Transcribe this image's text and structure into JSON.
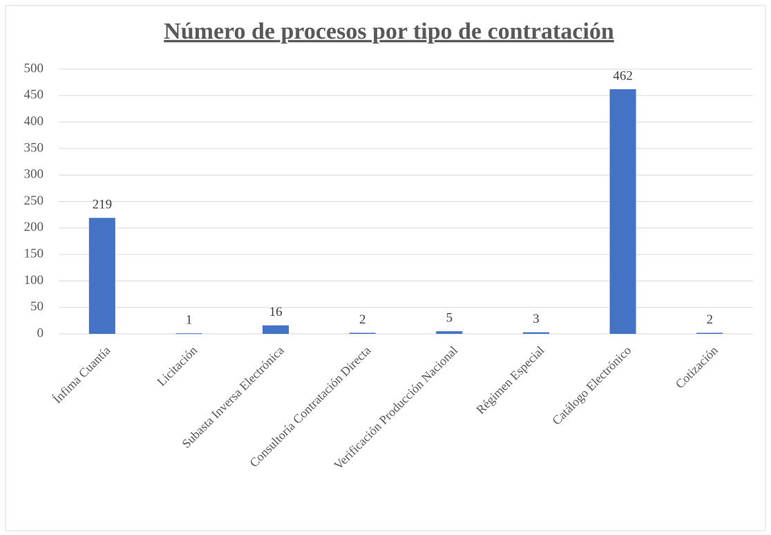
{
  "chart_data": {
    "type": "bar",
    "title": "Número de procesos por tipo de contratación",
    "categories": [
      "Ínfima Cuantía",
      "Licitación",
      "Subasta Inversa Electrónica",
      "Consultoría Contratación Directa",
      "Verificación Producción Nacional",
      "Régimen Especial",
      "Catálogo Electrónico",
      "Cotización"
    ],
    "values": [
      219,
      1,
      16,
      2,
      5,
      3,
      462,
      2
    ],
    "color": "#4472c4",
    "ylim": [
      0,
      500
    ],
    "yticks": [
      0,
      50,
      100,
      150,
      200,
      250,
      300,
      350,
      400,
      450,
      500
    ],
    "grid": true
  }
}
